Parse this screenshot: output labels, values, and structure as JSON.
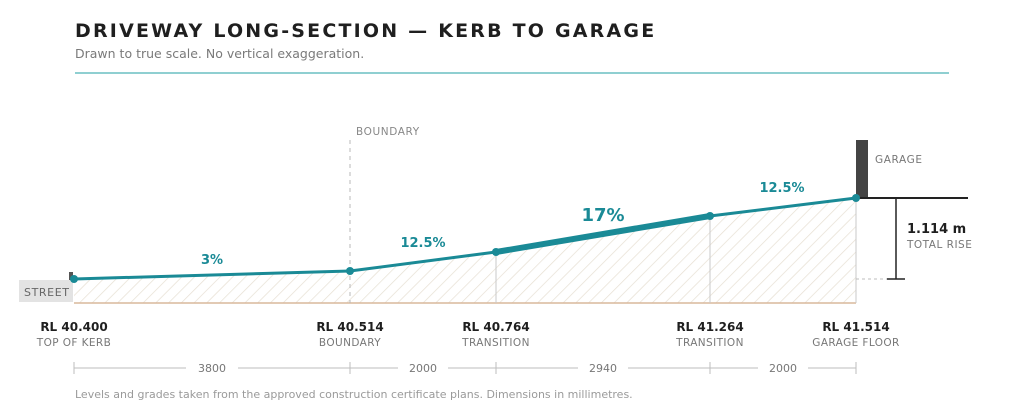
{
  "header": {
    "title": "DRIVEWAY LONG-SECTION — KERB TO GARAGE",
    "subtitle": "Drawn to true scale. No vertical exaggeration."
  },
  "labels": {
    "street": "STREET",
    "boundary": "BOUNDARY",
    "garage": "GARAGE"
  },
  "grades": [
    {
      "value": "3%"
    },
    {
      "value": "12.5%"
    },
    {
      "value": "17%",
      "emphasis": true
    },
    {
      "value": "12.5%"
    }
  ],
  "levels": [
    {
      "rl": "RL 40.400",
      "name": "TOP OF KERB"
    },
    {
      "rl": "RL 40.514",
      "name": "BOUNDARY"
    },
    {
      "rl": "RL 40.764",
      "name": "TRANSITION"
    },
    {
      "rl": "RL 41.264",
      "name": "TRANSITION"
    },
    {
      "rl": "RL 41.514",
      "name": "GARAGE FLOOR"
    }
  ],
  "dimensions": [
    "3800",
    "2000",
    "2940",
    "2000"
  ],
  "total_rise": {
    "value": "1.114 m",
    "label": "TOTAL RISE"
  },
  "footnote": "Levels and grades taken from the approved construction certificate plans. Dimensions in millimetres.",
  "colors": {
    "profile": "#1a8a96",
    "profile_label": "#1a8a96",
    "ground": "#d9b89c",
    "hatch": "#e6dfd2",
    "garage_wall": "#444444",
    "street": "#e3e3e3"
  }
}
